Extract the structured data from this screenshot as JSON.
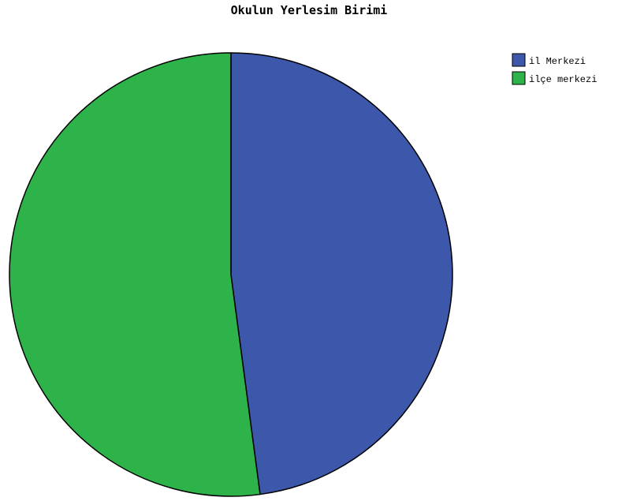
{
  "chart_data": {
    "type": "pie",
    "title": "Okulun Yerlesim Birimi",
    "slices": [
      {
        "label": "il Merkezi",
        "value": 47.9,
        "color": "#3d58aa"
      },
      {
        "label": "ilçe merkezi",
        "value": 52.1,
        "color": "#2db34a"
      }
    ],
    "start_angle_deg": 0,
    "direction": "clockwise",
    "legend_position": "top-right"
  }
}
